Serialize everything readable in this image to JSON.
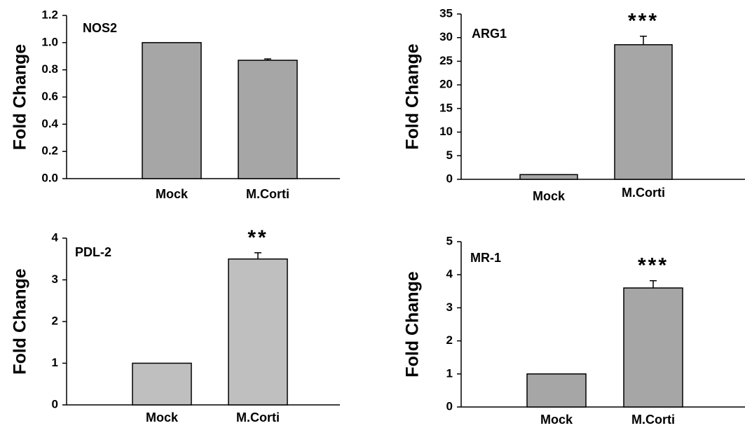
{
  "chart_data": [
    {
      "type": "bar",
      "title": "NOS2",
      "ylabel": "Fold Change",
      "categories": [
        "Mock",
        "M.Corti"
      ],
      "values": [
        1.0,
        0.87
      ],
      "errors": [
        0,
        0.01
      ],
      "significance": [
        "",
        ""
      ],
      "ylim": [
        0,
        1.2
      ],
      "yticks": [
        "0.0",
        "0.2",
        "0.4",
        "0.6",
        "0.8",
        "1.0",
        "1.2"
      ],
      "bar_color": "#a6a6a6",
      "grid": false,
      "legend": "none"
    },
    {
      "type": "bar",
      "title": "ARG1",
      "ylabel": "Fold Change",
      "categories": [
        "Mock",
        "M.Corti"
      ],
      "values": [
        1.0,
        28.5
      ],
      "errors": [
        0,
        1.8
      ],
      "significance": [
        "",
        "***"
      ],
      "ylim": [
        0,
        35
      ],
      "yticks": [
        "0",
        "5",
        "10",
        "15",
        "20",
        "25",
        "30",
        "35"
      ],
      "bar_color": "#a6a6a6",
      "grid": false,
      "legend": "none"
    },
    {
      "type": "bar",
      "title": "PDL-2",
      "ylabel": "Fold Change",
      "categories": [
        "Mock",
        "M.Corti"
      ],
      "values": [
        1.0,
        3.5
      ],
      "errors": [
        0,
        0.15
      ],
      "significance": [
        "",
        "**"
      ],
      "ylim": [
        0,
        4
      ],
      "yticks": [
        "0",
        "1",
        "2",
        "3",
        "4"
      ],
      "bar_color": "#bfbfbf",
      "grid": false,
      "legend": "none"
    },
    {
      "type": "bar",
      "title": "MR-1",
      "ylabel": "Fold Change",
      "categories": [
        "Mock",
        "M.Corti"
      ],
      "values": [
        1.0,
        3.6
      ],
      "errors": [
        0,
        0.22
      ],
      "significance": [
        "",
        "***"
      ],
      "ylim": [
        0,
        5
      ],
      "yticks": [
        "0",
        "1",
        "2",
        "3",
        "4",
        "5"
      ],
      "bar_color": "#a6a6a6",
      "grid": false,
      "legend": "none"
    }
  ]
}
